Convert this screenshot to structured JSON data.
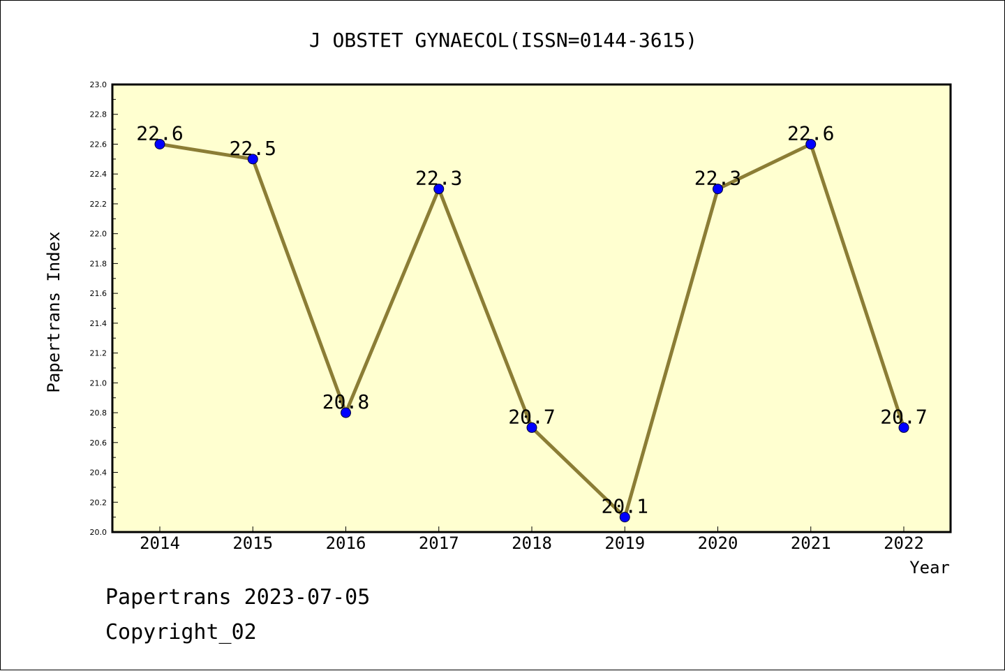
{
  "chart_data": {
    "type": "line",
    "title": "J OBSTET GYNAECOL(ISSN=0144-3615)",
    "xlabel": "Year",
    "ylabel": "Papertrans Index",
    "categories": [
      "2014",
      "2015",
      "2016",
      "2017",
      "2018",
      "2019",
      "2020",
      "2021",
      "2022"
    ],
    "series": [
      {
        "values": [
          22.6,
          22.5,
          20.8,
          22.3,
          20.7,
          20.1,
          22.3,
          22.6,
          20.7
        ]
      }
    ],
    "data_labels": [
      "22.6",
      "22.5",
      "20.8",
      "22.3",
      "20.7",
      "20.1",
      "22.3",
      "22.6",
      "20.7"
    ],
    "ylim": [
      20.0,
      23.0
    ],
    "y_ticks": [
      "20.0",
      "20.2",
      "20.4",
      "20.6",
      "20.8",
      "21.0",
      "21.2",
      "21.4",
      "21.6",
      "21.8",
      "22.0",
      "22.2",
      "22.4",
      "22.6",
      "22.8",
      "23.0"
    ],
    "grid": false,
    "plot_background": "#ffffd0",
    "line_color": "#8b7d35",
    "marker_color": "#0000ff"
  },
  "footer": {
    "line1": "Papertrans 2023-07-05",
    "line2": "Copyright_02"
  }
}
